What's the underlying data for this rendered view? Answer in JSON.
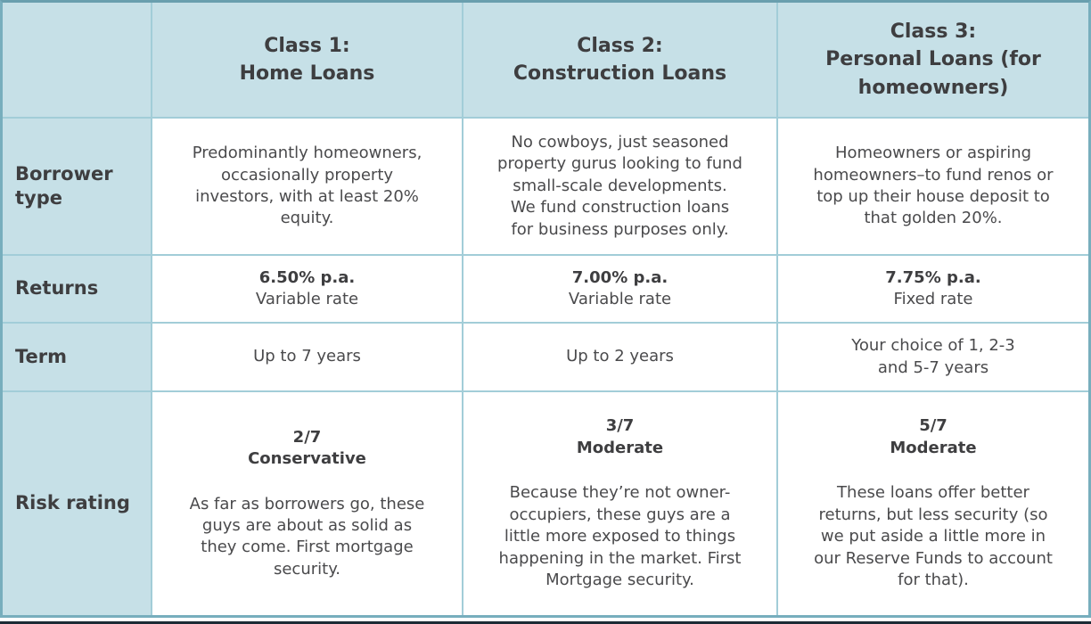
{
  "colors": {
    "cell_bg": "#c6e0e7",
    "border_outer": "#77aebd",
    "border_inner": "#a2cdd8",
    "text_heading": "#3e3e40",
    "text_body": "#4a4a4c",
    "bottom_rule": "#1c2a35"
  },
  "headers": {
    "corner": "",
    "class1": "Class 1:\nHome Loans",
    "class2": "Class 2:\nConstruction Loans",
    "class3": "Class 3:\nPersonal Loans (for\nhomeowners)"
  },
  "rows": {
    "borrower": {
      "label": "Borrower type",
      "class1": "Predominantly homeowners,\noccasionally property\ninvestors, with at least 20%\nequity.",
      "class2": "No cowboys, just seasoned\nproperty gurus looking to fund\nsmall-scale developments.\nWe fund construction loans\nfor business purposes only.",
      "class3": "Homeowners or aspiring\nhomeowners–to fund renos or\ntop up their house deposit to\nthat golden 20%."
    },
    "returns": {
      "label": "Returns",
      "class1": {
        "rate": "6.50% p.a.",
        "type": "Variable rate"
      },
      "class2": {
        "rate": "7.00% p.a.",
        "type": "Variable rate"
      },
      "class3": {
        "rate": "7.75% p.a.",
        "type": "Fixed rate"
      }
    },
    "term": {
      "label": "Term",
      "class1": "Up to 7 years",
      "class2": "Up to 2 years",
      "class3": "Your choice of 1, 2-3\nand 5-7 years"
    },
    "risk": {
      "label": "Risk rating",
      "class1": {
        "rating": "2/7\nConservative",
        "note": "As far as borrowers go, these\nguys are about as solid as\nthey come. First mortgage\nsecurity."
      },
      "class2": {
        "rating": "3/7\nModerate",
        "note": "Because they’re not owner-\noccupiers, these guys are a\nlittle more exposed to things\nhappening in the market. First\nMortgage security."
      },
      "class3": {
        "rating": "5/7\nModerate",
        "note": "These loans offer better\nreturns, but less security (so\nwe put aside a little more in\nour Reserve Funds to account\nfor that)."
      }
    }
  }
}
